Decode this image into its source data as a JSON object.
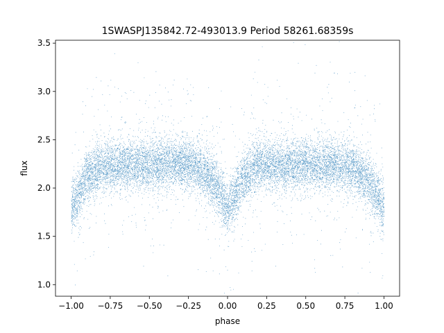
{
  "chart_data": {
    "type": "scatter",
    "title": "1SWASPJ135842.72-493013.9 Period 58261.68359s",
    "xlabel": "phase",
    "ylabel": "flux",
    "xlim": [
      -1.1,
      1.1
    ],
    "ylim": [
      0.88,
      3.53
    ],
    "x_ticks": [
      -1.0,
      -0.75,
      -0.5,
      -0.25,
      0.0,
      0.25,
      0.5,
      0.75,
      1.0
    ],
    "x_tick_labels": [
      "−1.00",
      "−0.75",
      "−0.50",
      "−0.25",
      "0.00",
      "0.25",
      "0.50",
      "0.75",
      "1.00"
    ],
    "y_ticks": [
      1.0,
      1.5,
      2.0,
      2.5,
      3.0,
      3.5
    ],
    "y_tick_labels": [
      "1.0",
      "1.5",
      "2.0",
      "2.5",
      "3.0",
      "3.5"
    ],
    "grid": false,
    "point_color": "#1f77b4",
    "profile": {
      "phase": [
        -1.0,
        -0.95,
        -0.9,
        -0.8,
        -0.7,
        -0.5,
        -0.3,
        -0.2,
        -0.1,
        -0.05,
        0.0,
        0.05,
        0.1,
        0.2,
        0.3,
        0.5,
        0.7,
        0.8,
        0.9,
        0.95,
        1.0
      ],
      "flux": [
        1.78,
        1.95,
        2.12,
        2.23,
        2.25,
        2.24,
        2.26,
        2.22,
        2.08,
        1.95,
        1.78,
        1.95,
        2.12,
        2.25,
        2.24,
        2.24,
        2.25,
        2.22,
        2.08,
        1.95,
        1.78
      ]
    },
    "scatter_sigma": 0.13,
    "outlier_fraction": 0.08,
    "n_points": 14000
  }
}
